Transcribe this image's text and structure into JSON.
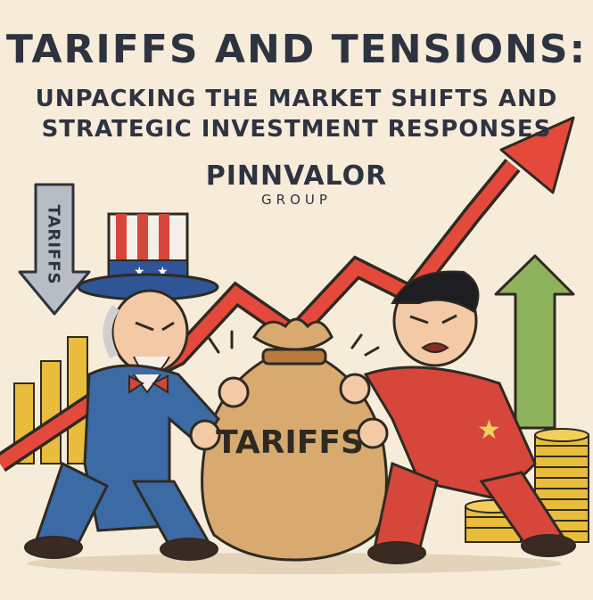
{
  "header": {
    "title": "TARIFFS AND TENSIONS:",
    "subtitle_line1": "UNPACKING THE MARKET SHIFTS AND",
    "subtitle_line2": "STRATEGIC INVESTMENT RESPONSES"
  },
  "brand": {
    "name": "PINNVALOR",
    "subname": "GROUP"
  },
  "labels": {
    "down_arrow_text": "TARIFFS",
    "bag_text": "TARIFFS"
  },
  "colors": {
    "background": "#f7ecd9",
    "red_arrow": "#e5493b",
    "green_arrow": "#8fb35d",
    "gold": "#e9bd3b",
    "uncle_sam_suit": "#3c6aa5",
    "red_suit": "#d6463a",
    "bag": "#d8aa70",
    "text": "#2e3340"
  }
}
